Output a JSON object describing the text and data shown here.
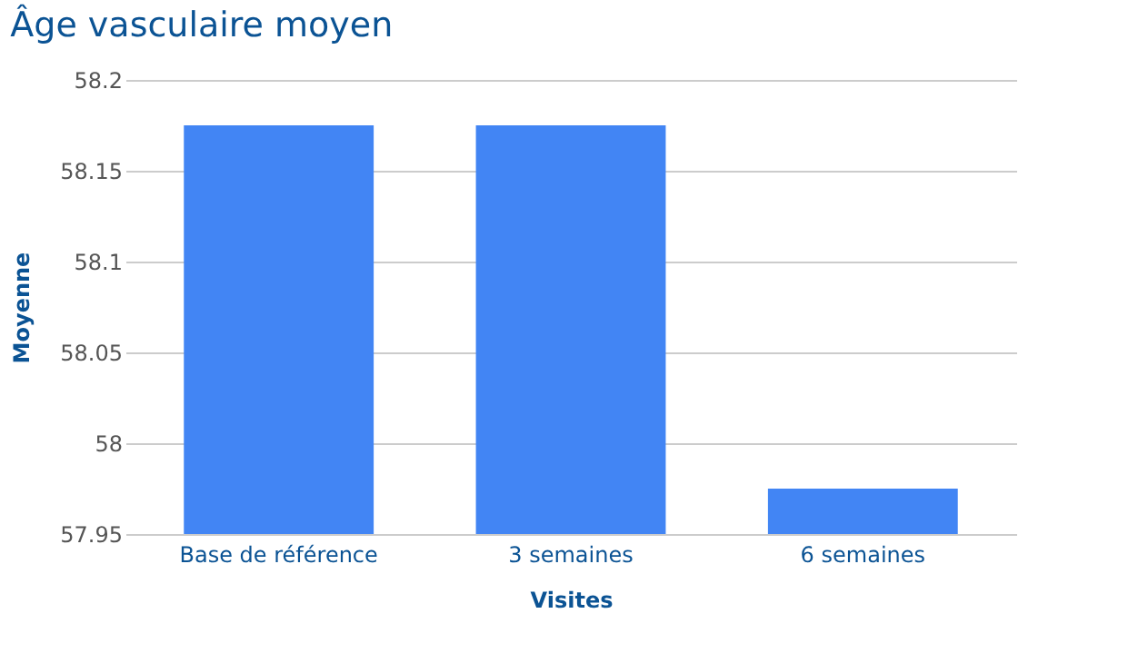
{
  "chart_data": {
    "type": "bar",
    "title": "Âge vasculaire moyen",
    "xlabel": "Visites",
    "ylabel": "Moyenne",
    "categories": [
      "Base de référence",
      "3 semaines",
      "6 semaines"
    ],
    "values": [
      58.175,
      58.175,
      57.975
    ],
    "color": "#4285f4",
    "ylim": [
      57.95,
      58.2
    ],
    "yticks": [
      57.95,
      58,
      58.05,
      58.1,
      58.15,
      58.2
    ],
    "grid": "y"
  }
}
